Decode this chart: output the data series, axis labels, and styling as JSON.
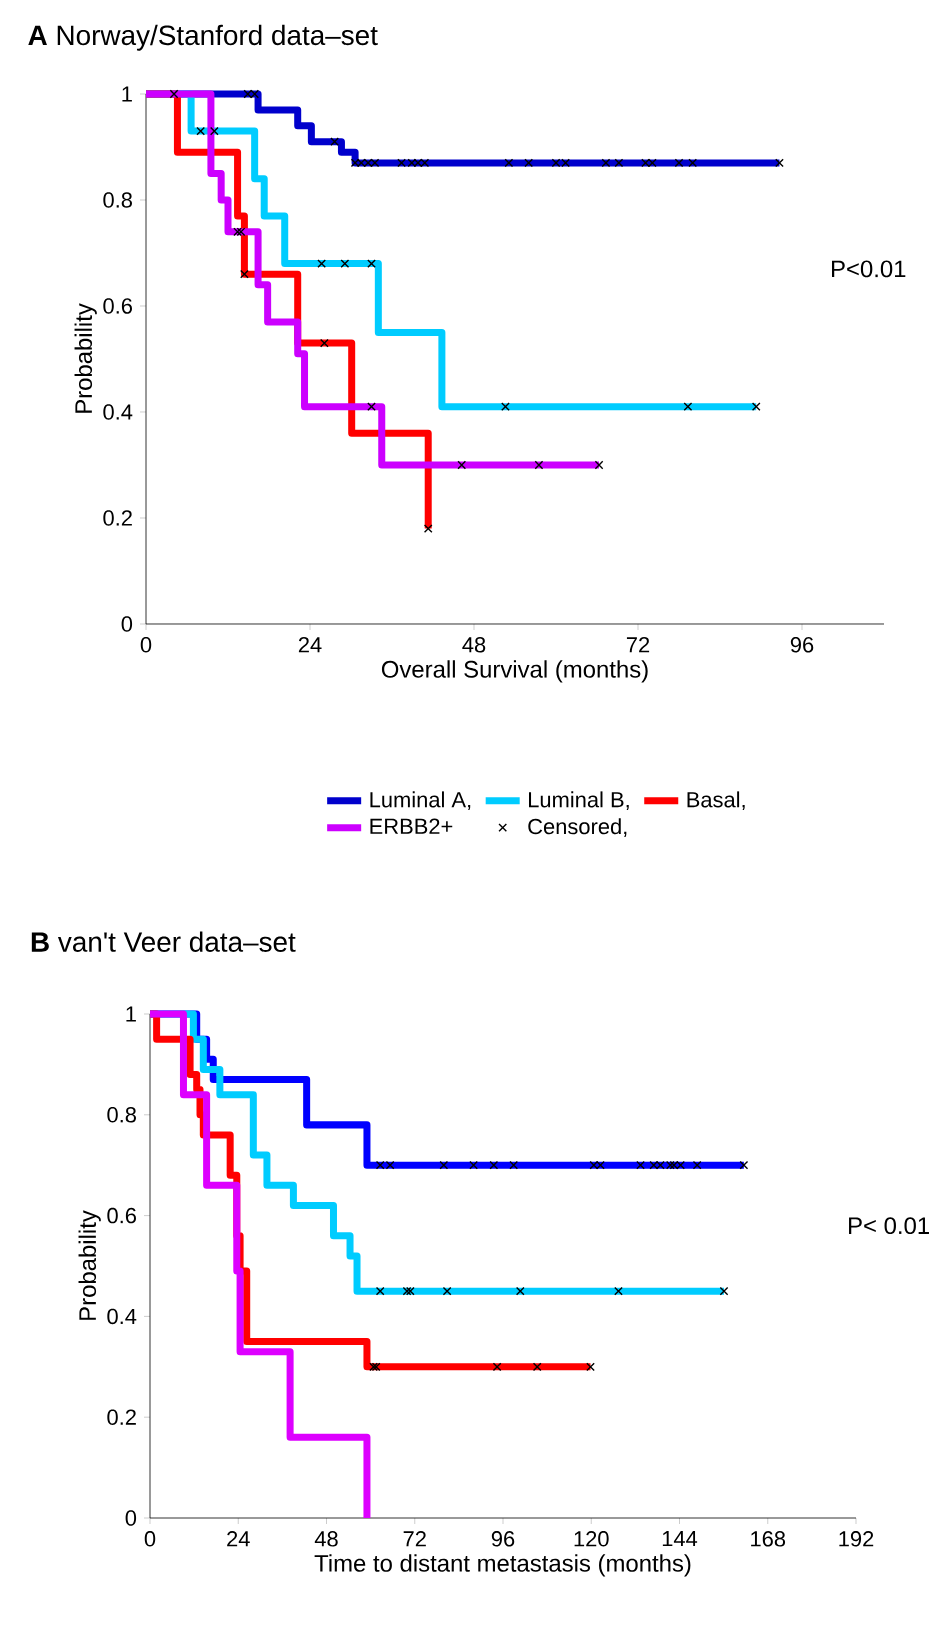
{
  "chart_data": [
    {
      "type": "step",
      "title": "**A** Norway/Stanford data–set",
      "xlabel": "Overall Survival (months)",
      "ylabel": "Probability",
      "xlim": [
        0,
        108
      ],
      "ylim": [
        0,
        1
      ],
      "xticks": [
        0,
        24,
        48,
        72,
        96
      ],
      "yticks": [
        0,
        0.2,
        0.4,
        0.6,
        0.8,
        1
      ],
      "legend": "bottom",
      "annotations": [
        "P<0.01"
      ],
      "series": [
        {
          "name": "Censored,",
          "type": "scatter",
          "marker": "cross",
          "color": "#000000",
          "x": [
            4.1,
            14.9,
            15.9,
            27.6,
            30.6,
            31.5,
            32.5,
            33.5,
            37.4,
            38.9,
            39.8,
            40.8,
            53.1,
            56,
            60,
            61.4,
            67.3,
            69.2,
            73.1,
            74.1,
            78,
            80,
            92.7,
            8,
            10,
            25.7,
            29.1,
            33,
            52.6,
            79.3,
            89.3,
            14.4,
            26.1,
            41.3,
            13.4,
            13.9,
            33,
            46.2,
            57.5,
            66.3
          ],
          "values": [
            1,
            1,
            1,
            0.91,
            0.87,
            0.87,
            0.87,
            0.87,
            0.87,
            0.87,
            0.87,
            0.87,
            0.87,
            0.87,
            0.87,
            0.87,
            0.87,
            0.87,
            0.87,
            0.87,
            0.87,
            0.87,
            0.87,
            0.93,
            0.93,
            0.68,
            0.68,
            0.68,
            0.41,
            0.41,
            0.41,
            0.66,
            0.53,
            0.18,
            0.74,
            0.74,
            0.41,
            0.3,
            0.3,
            0.3
          ]
        },
        {
          "name": "Luminal A,",
          "color": "#0000cc",
          "x": [
            0,
            16.4,
            22.2,
            24.2,
            28.6,
            30.6,
            92.7
          ],
          "values": [
            1,
            0.97,
            0.94,
            0.91,
            0.89,
            0.87,
            0.87
          ]
        },
        {
          "name": "Luminal B,",
          "color": "#00ccff",
          "x": [
            0,
            6.6,
            15.9,
            17.3,
            20.3,
            34,
            43.3,
            89.3
          ],
          "values": [
            1,
            0.93,
            0.84,
            0.77,
            0.68,
            0.55,
            0.41,
            0.41
          ]
        },
        {
          "name": "Basal,",
          "color": "#ff0000",
          "x": [
            0,
            4.6,
            13.4,
            14.4,
            22.2,
            30.1,
            41.3
          ],
          "values": [
            1,
            0.89,
            0.77,
            0.66,
            0.53,
            0.36,
            0.18
          ]
        },
        {
          "name": "ERBB2+",
          "color": "#cc00ff",
          "x": [
            0,
            9.5,
            11,
            12,
            16.4,
            17.8,
            22.2,
            23.2,
            34.5,
            66.3
          ],
          "values": [
            1,
            0.85,
            0.8,
            0.74,
            0.64,
            0.57,
            0.51,
            0.41,
            0.3,
            0.3
          ]
        }
      ]
    },
    {
      "type": "step",
      "title": "**B** van't Veer data–set",
      "xlabel": "Time to distant metastasis (months)",
      "ylabel": "Probability",
      "xlim": [
        0,
        192
      ],
      "ylim": [
        0,
        1
      ],
      "xticks": [
        0,
        24,
        48,
        72,
        96,
        120,
        144,
        168,
        192
      ],
      "yticks": [
        0,
        0.2,
        0.4,
        0.6,
        0.8,
        1
      ],
      "annotations": [
        "P< 0.01"
      ],
      "series": [
        {
          "color": "#0000ff",
          "x": [
            0,
            12.7,
            15.4,
            17.2,
            42.6,
            59,
            161.5
          ],
          "values": [
            1,
            0.95,
            0.91,
            0.87,
            0.78,
            0.7,
            0.7
          ]
        },
        {
          "color": "#00ccff",
          "x": [
            0,
            11.8,
            14.5,
            19,
            28.1,
            31.8,
            39,
            49.9,
            54.4,
            56.3,
            156.1
          ],
          "values": [
            1,
            0.95,
            0.89,
            0.84,
            0.72,
            0.66,
            0.62,
            0.56,
            0.52,
            0.45,
            0.45
          ]
        },
        {
          "color": "#ff0000",
          "x": [
            0,
            1.8,
            10.9,
            12.7,
            13.6,
            14.5,
            21.8,
            23.6,
            24.5,
            26.3,
            59,
            119.8
          ],
          "values": [
            1,
            0.95,
            0.88,
            0.85,
            0.8,
            0.76,
            0.68,
            0.56,
            0.49,
            0.35,
            0.3,
            0.3
          ]
        },
        {
          "color": "#dd00ff",
          "x": [
            0,
            9.1,
            15.4,
            23.6,
            24.5,
            38.1,
            59
          ],
          "values": [
            1,
            0.84,
            0.66,
            0.49,
            0.33,
            0.16,
            0
          ]
        },
        {
          "type": "scatter",
          "marker": "cross",
          "color": "#000000",
          "x": [
            62.6,
            65.3,
            79.9,
            88,
            93.5,
            98.9,
            120.7,
            122.5,
            133.4,
            137,
            138.8,
            141.5,
            142.5,
            144.3,
            148.8,
            161.5,
            62.6,
            69.9,
            70.8,
            80.8,
            100.7,
            127.4,
            156.1,
            60.8,
            61.5,
            94.4,
            105.3,
            119.8
          ],
          "values": [
            0.7,
            0.7,
            0.7,
            0.7,
            0.7,
            0.7,
            0.7,
            0.7,
            0.7,
            0.7,
            0.7,
            0.7,
            0.7,
            0.7,
            0.7,
            0.7,
            0.45,
            0.45,
            0.45,
            0.45,
            0.45,
            0.45,
            0.45,
            0.3,
            0.3,
            0.3,
            0.3,
            0.3
          ]
        }
      ]
    }
  ]
}
